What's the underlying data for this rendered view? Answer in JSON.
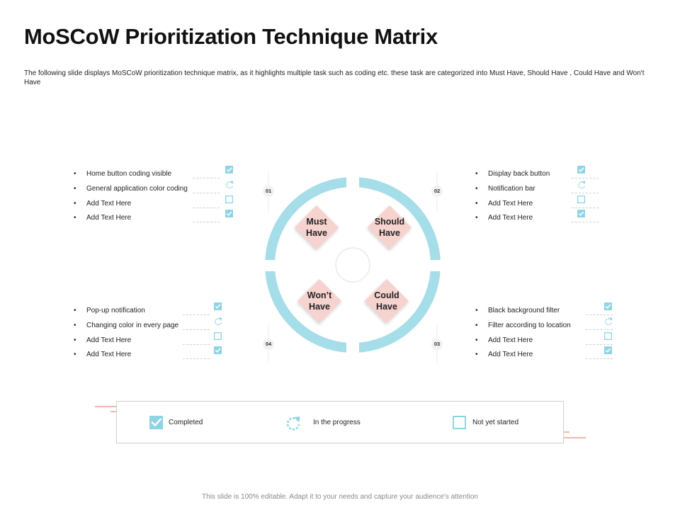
{
  "title": "MoSCoW Prioritization Technique Matrix",
  "subtitle": "The following slide displays MoSCoW prioritization technique matrix, as it highlights multiple  task such as coding etc. these task are categorized into Must Have, Should Have , Could Have and Won't Have",
  "colors": {
    "ring": "#a5dde8",
    "diamond": "#f6d3cf",
    "status_icon": "#8fd4e2",
    "accent_line": "#f0b8a8"
  },
  "quadrants": {
    "must": {
      "number": "01",
      "label_line1": "Must",
      "label_line2": "Have",
      "tasks": [
        {
          "text": "Home button coding visible",
          "status": "completed"
        },
        {
          "text": "General application color coding",
          "status": "in-progress"
        },
        {
          "text": "Add Text Here",
          "status": "not-started"
        },
        {
          "text": "Add Text Here",
          "status": "completed"
        }
      ]
    },
    "should": {
      "number": "02",
      "label_line1": "Should",
      "label_line2": "Have",
      "tasks": [
        {
          "text": "Display back button",
          "status": "completed"
        },
        {
          "text": "Notification bar",
          "status": "in-progress"
        },
        {
          "text": "Add Text Here",
          "status": "not-started"
        },
        {
          "text": "Add Text Here",
          "status": "completed"
        }
      ]
    },
    "could": {
      "number": "03",
      "label_line1": "Could",
      "label_line2": "Have",
      "tasks": [
        {
          "text": "Black background filter",
          "status": "completed"
        },
        {
          "text": "Filter according to location",
          "status": "in-progress"
        },
        {
          "text": "Add Text Here",
          "status": "not-started"
        },
        {
          "text": "Add Text Here",
          "status": "completed"
        }
      ]
    },
    "wont": {
      "number": "04",
      "label_line1": "Won’t",
      "label_line2": "Have",
      "tasks": [
        {
          "text": "Pop-up notification",
          "status": "completed"
        },
        {
          "text": "Changing color in every page",
          "status": "in-progress"
        },
        {
          "text": "Add Text Here",
          "status": "not-started"
        },
        {
          "text": "Add Text Here",
          "status": "completed"
        }
      ]
    }
  },
  "legend": {
    "completed": {
      "label": "Completed",
      "icon": "checkbox-checked-icon"
    },
    "in_progress": {
      "label": "In the progress",
      "icon": "refresh-icon"
    },
    "not_started": {
      "label": "Not yet started",
      "icon": "checkbox-empty-icon"
    }
  },
  "footer": "This slide is 100% editable. Adapt it to your needs and capture your audience's attention"
}
